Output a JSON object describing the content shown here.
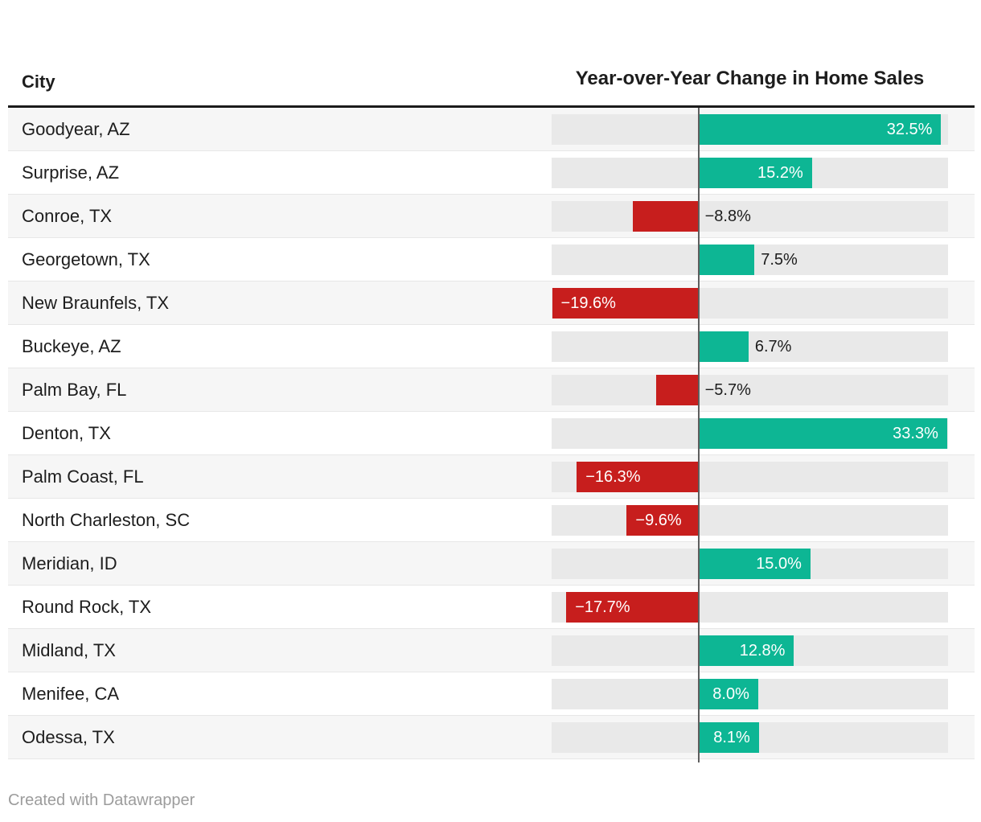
{
  "table": {
    "city_header": "City",
    "value_header": "Year-over-Year Change in Home Sales",
    "rows": [
      {
        "city": "Goodyear, AZ",
        "value": 32.5,
        "label": "32.5%",
        "label_inside": true
      },
      {
        "city": "Surprise, AZ",
        "value": 15.2,
        "label": "15.2%",
        "label_inside": true
      },
      {
        "city": "Conroe, TX",
        "value": -8.8,
        "label": "−8.8%",
        "label_inside": false
      },
      {
        "city": "Georgetown, TX",
        "value": 7.5,
        "label": "7.5%",
        "label_inside": false
      },
      {
        "city": "New Braunfels, TX",
        "value": -19.6,
        "label": "−19.6%",
        "label_inside": true
      },
      {
        "city": "Buckeye, AZ",
        "value": 6.7,
        "label": "6.7%",
        "label_inside": false
      },
      {
        "city": "Palm Bay, FL",
        "value": -5.7,
        "label": "−5.7%",
        "label_inside": false
      },
      {
        "city": "Denton, TX",
        "value": 33.3,
        "label": "33.3%",
        "label_inside": true
      },
      {
        "city": "Palm Coast, FL",
        "value": -16.3,
        "label": "−16.3%",
        "label_inside": true
      },
      {
        "city": "North Charleston, SC",
        "value": -9.6,
        "label": "−9.6%",
        "label_inside": true
      },
      {
        "city": "Meridian, ID",
        "value": 15.0,
        "label": "15.0%",
        "label_inside": true
      },
      {
        "city": "Round Rock, TX",
        "value": -17.7,
        "label": "−17.7%",
        "label_inside": true
      },
      {
        "city": "Midland, TX",
        "value": 12.8,
        "label": "12.8%",
        "label_inside": true
      },
      {
        "city": "Menifee, CA",
        "value": 8.0,
        "label": "8.0%",
        "label_inside": true
      },
      {
        "city": "Odessa, TX",
        "value": 8.1,
        "label": "8.1%",
        "label_inside": true
      }
    ]
  },
  "axis": {
    "min": -19.66,
    "max": 33.42
  },
  "colors": {
    "positive": "#0db694",
    "negative": "#c71e1d",
    "track": "#e9e9e9",
    "alt_row": "#f6f6f6",
    "zero_line": "#5e5e5e",
    "header_rule": "#1b1b1b",
    "text": "#1d1d1d",
    "footer_text": "#9c9c9c"
  },
  "footer": {
    "credit": "Created with Datawrapper"
  },
  "chart_data": {
    "type": "bar",
    "orientation": "horizontal",
    "title": "Year-over-Year Change in Home Sales",
    "categories": [
      "Goodyear, AZ",
      "Surprise, AZ",
      "Conroe, TX",
      "Georgetown, TX",
      "New Braunfels, TX",
      "Buckeye, AZ",
      "Palm Bay, FL",
      "Denton, TX",
      "Palm Coast, FL",
      "North Charleston, SC",
      "Meridian, ID",
      "Round Rock, TX",
      "Midland, TX",
      "Menifee, CA",
      "Odessa, TX"
    ],
    "values": [
      32.5,
      15.2,
      -8.8,
      7.5,
      -19.6,
      6.7,
      -5.7,
      33.3,
      -16.3,
      -9.6,
      15.0,
      -17.7,
      12.8,
      8.0,
      8.1
    ],
    "value_unit": "%",
    "xlabel": "",
    "ylabel": "City",
    "xlim": [
      -19.66,
      33.42
    ],
    "grid": false,
    "legend": false,
    "positive_color": "#0db694",
    "negative_color": "#c71e1d"
  }
}
